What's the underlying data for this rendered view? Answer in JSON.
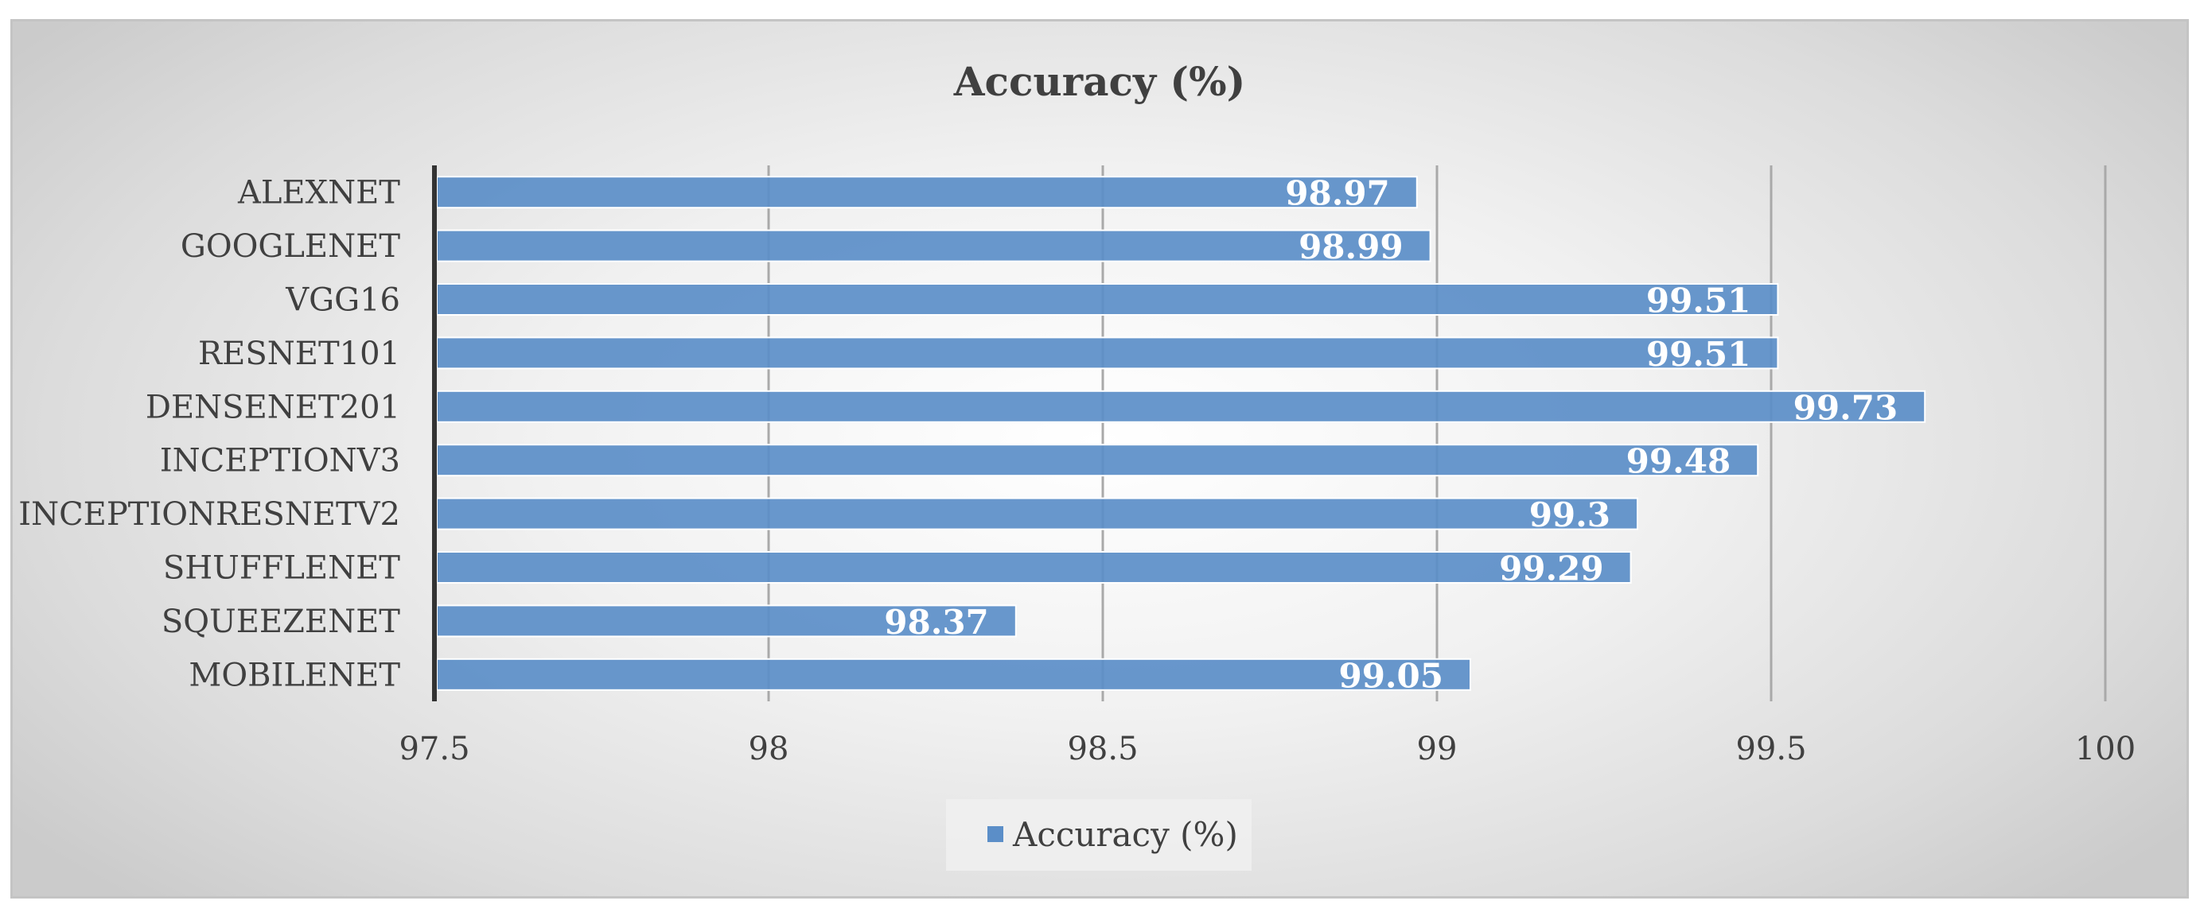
{
  "chart_data": {
    "type": "bar",
    "orientation": "horizontal",
    "title": "Accuracy (%)",
    "categories": [
      "ALEXNET",
      "GOOGLENET",
      "VGG16",
      "RESNET101",
      "DENSENET201",
      "INCEPTIONV3",
      "INCEPTIONRESNETV2",
      "SHUFFLENET",
      "SQUEEZENET",
      "MOBILENET"
    ],
    "series": [
      {
        "name": "Accuracy (%)",
        "values": [
          98.97,
          98.99,
          99.51,
          99.51,
          99.73,
          99.48,
          99.3,
          99.29,
          98.37,
          99.05
        ],
        "data_labels": [
          "98.97",
          "98.99",
          "99.51",
          "99.51",
          "99.73",
          "99.48",
          "99.3",
          "99.29",
          "98.37",
          "99.05"
        ],
        "color": "#5b8ec8"
      }
    ],
    "xlim": [
      97.5,
      100
    ],
    "x_ticks": [
      97.5,
      98,
      98.5,
      99,
      99.5,
      100
    ],
    "x_tick_labels": [
      "97.5",
      "98",
      "98.5",
      "99",
      "99.5",
      "100"
    ],
    "grid": "vertical",
    "legend": "bottom",
    "legend_label": "Accuracy (%)"
  }
}
